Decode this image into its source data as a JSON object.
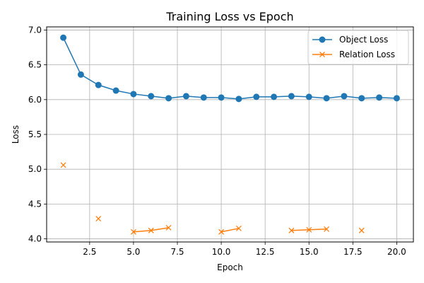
{
  "chart_data": {
    "type": "line",
    "title": "Training Loss vs Epoch",
    "xlabel": "Epoch",
    "ylabel": "Loss",
    "xlim": [
      0.05,
      20.95
    ],
    "ylim": [
      3.955,
      7.045
    ],
    "grid": true,
    "legend_position": "upper right",
    "xticks": [
      2.5,
      5.0,
      7.5,
      10.0,
      12.5,
      15.0,
      17.5,
      20.0
    ],
    "xtick_labels": [
      "2.5",
      "5.0",
      "7.5",
      "10.0",
      "12.5",
      "15.0",
      "17.5",
      "20.0"
    ],
    "yticks": [
      4.0,
      4.5,
      5.0,
      5.5,
      6.0,
      6.5,
      7.0
    ],
    "ytick_labels": [
      "4.0",
      "4.5",
      "5.0",
      "5.5",
      "6.0",
      "6.5",
      "7.0"
    ],
    "series": [
      {
        "name": "Object Loss",
        "color": "#1f77b4",
        "marker": "circle",
        "x": [
          1,
          2,
          3,
          4,
          5,
          6,
          7,
          8,
          9,
          10,
          11,
          12,
          13,
          14,
          15,
          16,
          17,
          18,
          19,
          20
        ],
        "y": [
          6.89,
          6.36,
          6.21,
          6.13,
          6.08,
          6.05,
          6.02,
          6.05,
          6.03,
          6.03,
          6.01,
          6.04,
          6.04,
          6.05,
          6.04,
          6.02,
          6.05,
          6.02,
          6.03,
          6.02
        ]
      },
      {
        "name": "Relation Loss",
        "color": "#ff7f0e",
        "marker": "x",
        "x": [
          1,
          2,
          3,
          4,
          5,
          6,
          7,
          8,
          9,
          10,
          11,
          12,
          13,
          14,
          15,
          16,
          17,
          18,
          19,
          20
        ],
        "y": [
          5.06,
          null,
          4.29,
          null,
          4.1,
          4.12,
          4.16,
          null,
          null,
          4.1,
          4.15,
          null,
          null,
          4.12,
          4.13,
          4.14,
          null,
          4.12,
          null,
          null
        ]
      }
    ]
  }
}
